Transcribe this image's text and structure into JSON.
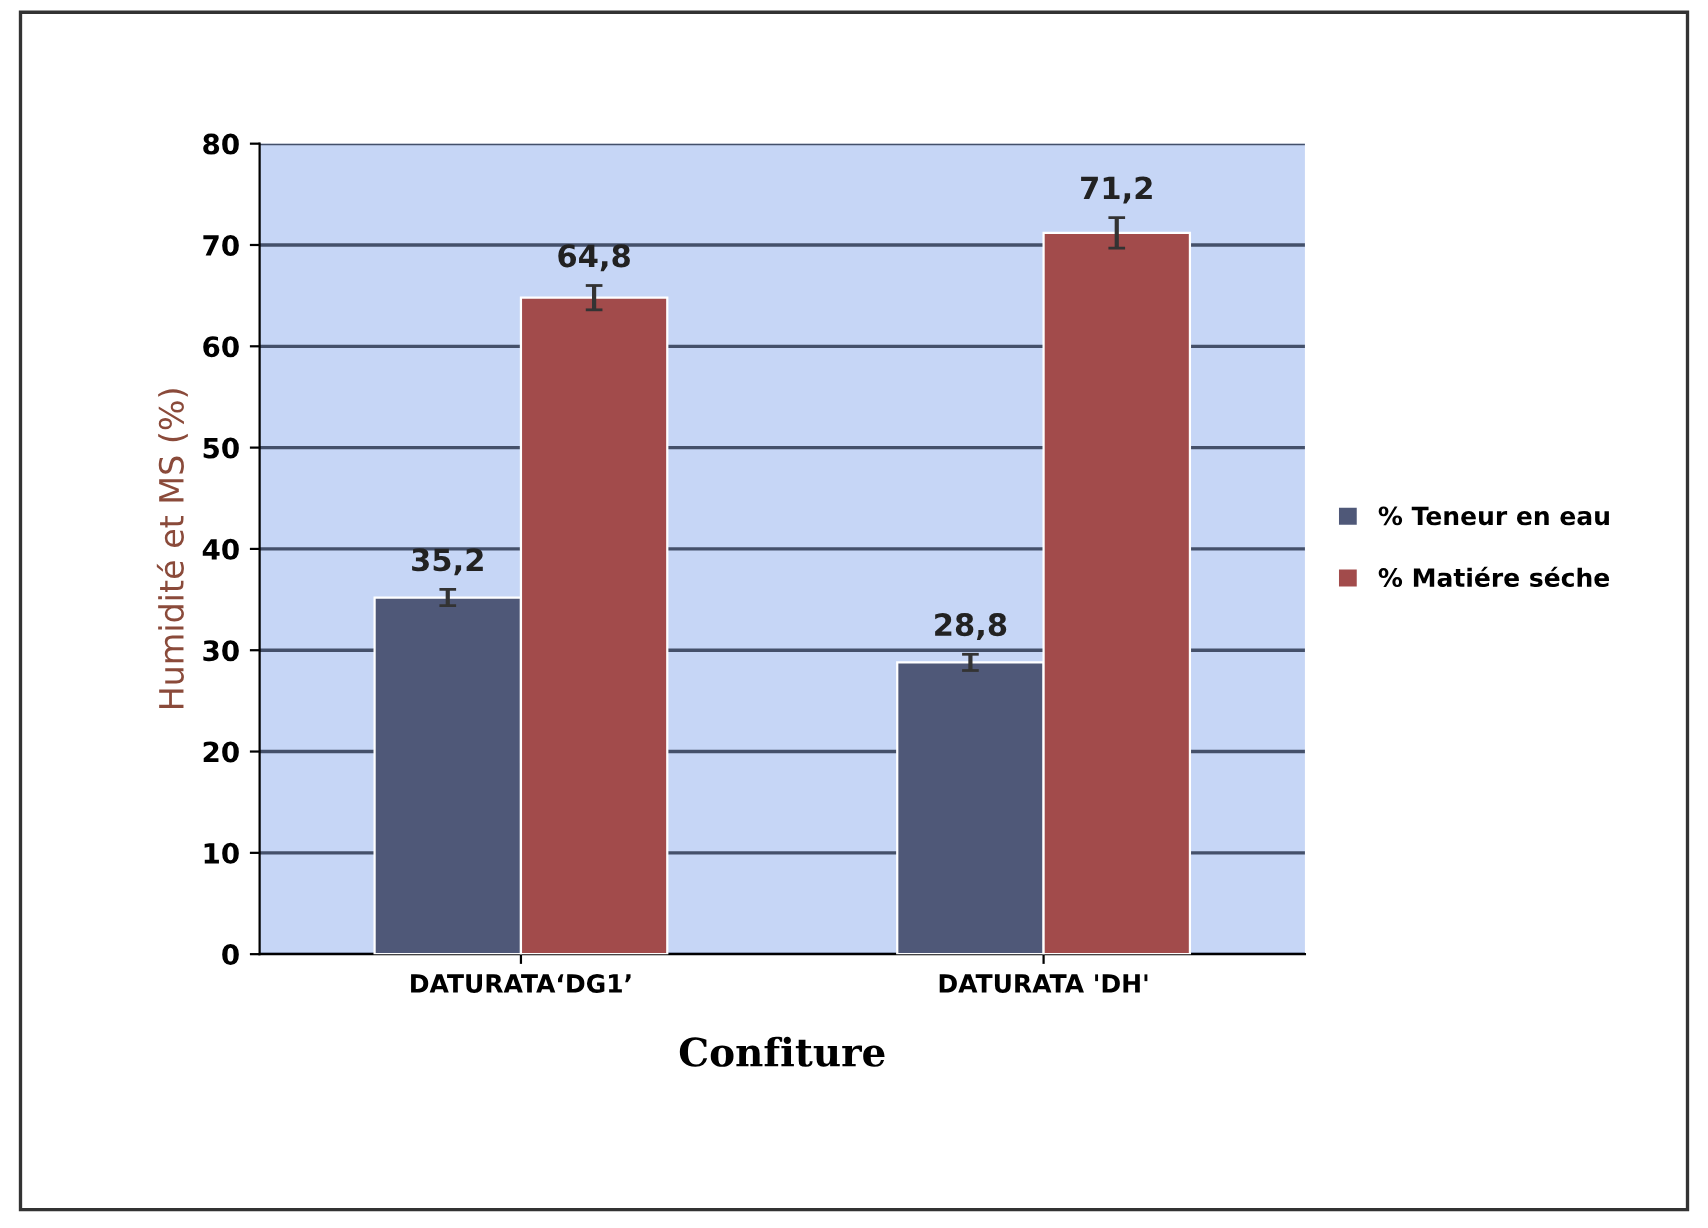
{
  "chart_data": {
    "type": "bar",
    "xlabel": "Confiture",
    "ylabel": "Humidité et MS (%)",
    "categories": [
      "DATURATA‘DG1’",
      "DATURATA 'DH'"
    ],
    "series": [
      {
        "name": "% Teneur en eau",
        "color": "#4f5878",
        "values": [
          35.2,
          28.8
        ],
        "errors": [
          0.8,
          0.8
        ],
        "value_labels": [
          "35,2",
          "28,8"
        ]
      },
      {
        "name": "% Matiére séche",
        "color": "#a24b4b",
        "values": [
          64.8,
          71.2
        ],
        "errors": [
          1.2,
          1.5
        ],
        "value_labels": [
          "64,8",
          "71,2"
        ]
      }
    ],
    "ylim": [
      0,
      80
    ],
    "yticks": [
      0,
      10,
      20,
      30,
      40,
      50,
      60,
      70,
      80
    ],
    "grid": "y",
    "legend": "right"
  }
}
